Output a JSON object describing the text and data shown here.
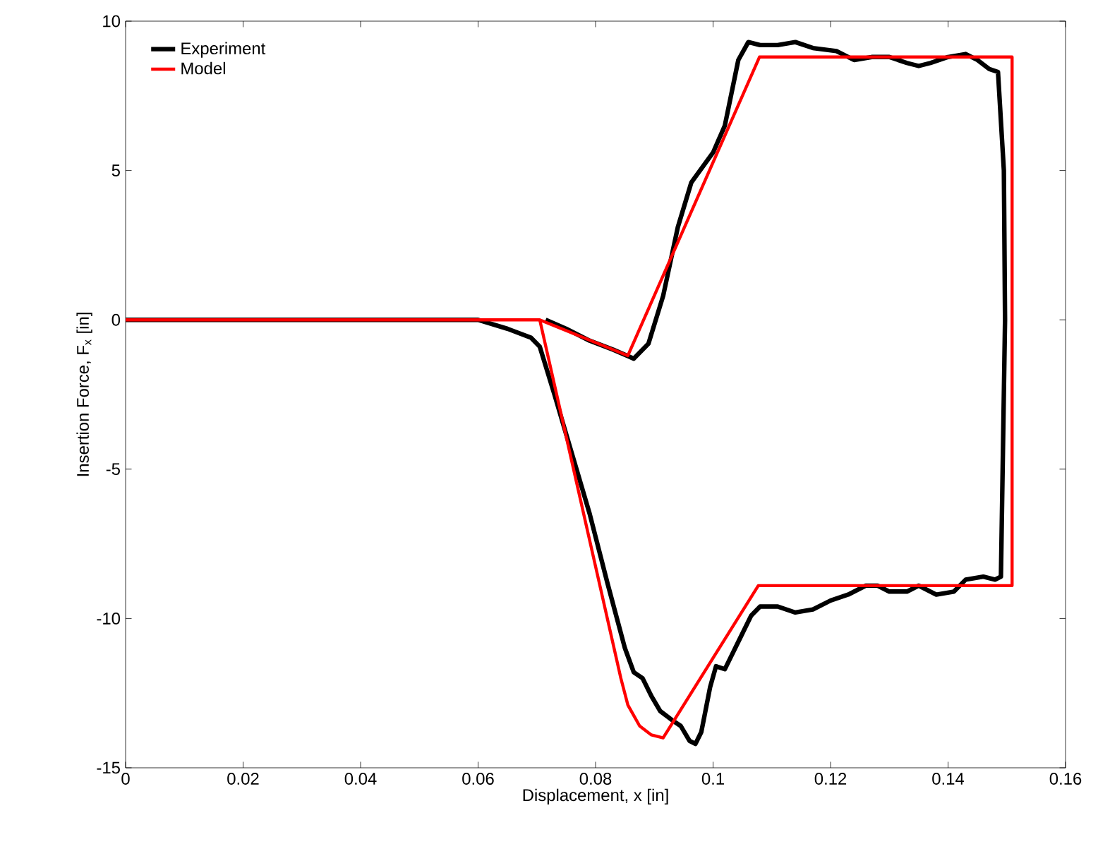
{
  "chart_data": {
    "type": "line",
    "xlabel": "Displacement, x [in]",
    "ylabel": "Insertion Force, F$_{x}$ [in]",
    "xlim": [
      0,
      0.16
    ],
    "ylim": [
      -15,
      10
    ],
    "xticks": [
      0,
      0.02,
      0.04,
      0.06,
      0.08,
      0.1,
      0.12,
      0.14,
      0.16
    ],
    "yticks": [
      -15,
      -10,
      -5,
      0,
      5,
      10
    ],
    "legend": "top left",
    "grid": false,
    "marker": "none",
    "line_style": "solid",
    "series": [
      {
        "name": "Experiment",
        "color": "#000000",
        "x": [
          0,
          0.06,
          0.065,
          0.069,
          0.0705,
          0.073,
          0.076,
          0.079,
          0.082,
          0.085,
          0.0865,
          0.088,
          0.0895,
          0.091,
          0.093,
          0.0945,
          0.096,
          0.097,
          0.098,
          0.0995,
          0.1005,
          0.102,
          0.103,
          0.1045,
          0.1065,
          0.108,
          0.111,
          0.114,
          0.117,
          0.12,
          0.123,
          0.126,
          0.128,
          0.13,
          0.133,
          0.135,
          0.138,
          0.141,
          0.143,
          0.146,
          0.148,
          0.149,
          0.1497,
          0.1495,
          0.1485,
          0.147,
          0.145,
          0.143,
          0.14,
          0.137,
          0.135,
          0.133,
          0.13,
          0.127,
          0.124,
          0.121,
          0.117,
          0.114,
          0.111,
          0.108,
          0.106,
          0.1043,
          0.102,
          0.1,
          0.0963,
          0.094,
          0.0915,
          0.089,
          0.0865,
          0.083,
          0.079,
          0.075,
          0.0715
        ],
        "values": [
          0,
          0,
          -0.3,
          -0.6,
          -0.9,
          -2.5,
          -4.5,
          -6.5,
          -8.8,
          -11,
          -11.8,
          -12,
          -12.6,
          -13.1,
          -13.4,
          -13.6,
          -14.1,
          -14.2,
          -13.8,
          -12.3,
          -11.6,
          -11.7,
          -11.3,
          -10.7,
          -9.9,
          -9.6,
          -9.6,
          -9.8,
          -9.7,
          -9.4,
          -9.2,
          -8.9,
          -8.9,
          -9.1,
          -9.1,
          -8.9,
          -9.2,
          -9.1,
          -8.7,
          -8.6,
          -8.7,
          -8.6,
          0,
          5,
          8.3,
          8.4,
          8.7,
          8.9,
          8.8,
          8.6,
          8.5,
          8.6,
          8.8,
          8.8,
          8.7,
          9,
          9.1,
          9.3,
          9.2,
          9.2,
          9.3,
          8.7,
          6.5,
          5.6,
          4.6,
          3.1,
          0.8,
          -0.8,
          -1.3,
          -1,
          -0.7,
          -0.3,
          0
        ]
      },
      {
        "name": "Model",
        "color": "#ff0000",
        "x": [
          0,
          0.0705,
          0.0855,
          0.1079,
          0.1509,
          0.1509,
          0.1077,
          0.0915,
          0.0895,
          0.0875,
          0.0855,
          0.0843,
          0.0705
        ],
        "values": [
          0,
          0,
          -1.2,
          8.8,
          8.8,
          -8.9,
          -8.9,
          -14,
          -13.9,
          -13.6,
          -12.9,
          -12,
          0
        ]
      }
    ]
  }
}
